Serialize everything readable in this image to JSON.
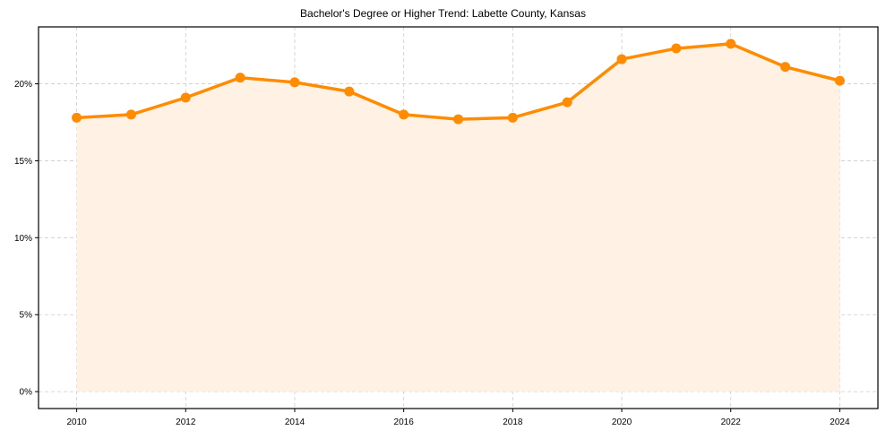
{
  "chart_data": {
    "type": "line",
    "title": "Bachelor's Degree or Higher Trend: Labette County, Kansas",
    "xlabel": "",
    "ylabel": "",
    "x": [
      2010,
      2011,
      2012,
      2013,
      2014,
      2015,
      2016,
      2017,
      2018,
      2019,
      2020,
      2021,
      2022,
      2023,
      2024
    ],
    "series": [
      {
        "name": "Bachelor's Degree or Higher",
        "values": [
          17.8,
          18.0,
          19.1,
          20.4,
          20.1,
          19.5,
          18.0,
          17.7,
          17.8,
          18.8,
          21.6,
          22.3,
          22.6,
          21.1,
          20.2
        ],
        "color": "#ff8c00",
        "fill_color": "#fff1e3",
        "marker": "circle",
        "area_fill": true
      }
    ],
    "xticks": [
      "2010",
      "2012",
      "2014",
      "2016",
      "2018",
      "2020",
      "2022",
      "2024"
    ],
    "yticks": [
      "0%",
      "5%",
      "10%",
      "15%",
      "20%"
    ],
    "ytick_values": [
      0,
      5,
      10,
      15,
      20
    ],
    "xlim": [
      2009.3,
      2024.7
    ],
    "ylim": [
      -1.1,
      23.7
    ],
    "grid": true,
    "grid_style": "dashed",
    "legend": null
  }
}
